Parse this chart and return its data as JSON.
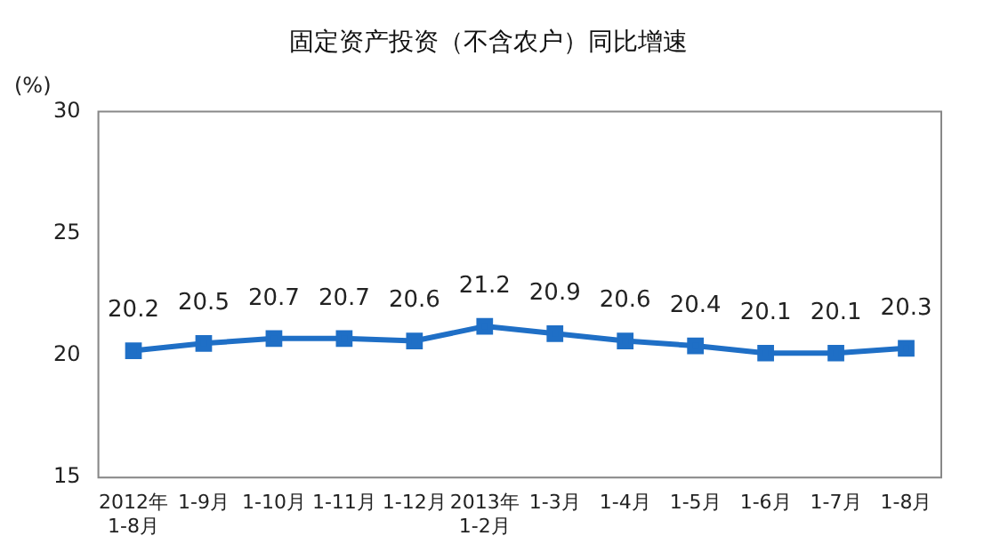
{
  "chart_data": {
    "type": "line",
    "title": "固定资产投资（不含农户）同比增速",
    "ylabel": "(%)",
    "categories": [
      "2012年\n1-8月",
      "1-9月",
      "1-10月",
      "1-11月",
      "1-12月",
      "2013年\n1-2月",
      "1-3月",
      "1-4月",
      "1-5月",
      "1-6月",
      "1-7月",
      "1-8月"
    ],
    "series": [
      {
        "color": "#1f6fc6",
        "values": [
          20.2,
          20.5,
          20.7,
          20.7,
          20.6,
          21.2,
          20.9,
          20.6,
          20.4,
          20.1,
          20.1,
          20.3
        ]
      }
    ],
    "ylim": [
      15,
      30
    ],
    "yticks": [
      15,
      20,
      25,
      30
    ],
    "grid": false,
    "legend": false,
    "marker": "square",
    "line_style": "solid",
    "data_labels": true
  }
}
